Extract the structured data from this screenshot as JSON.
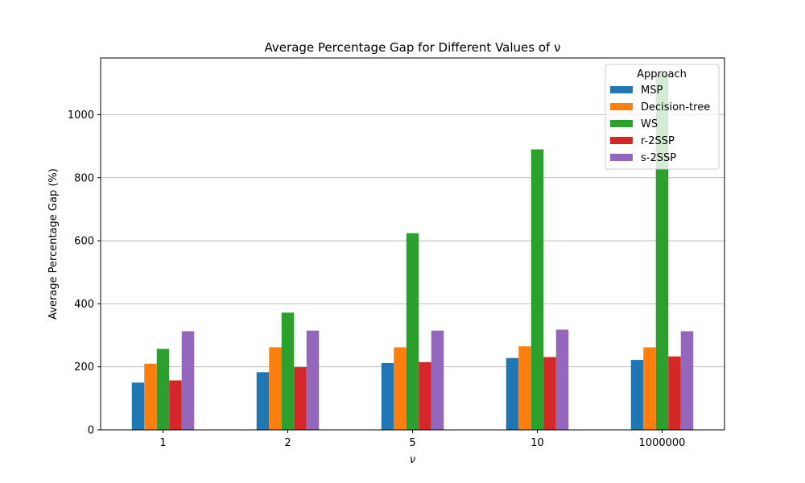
{
  "chart_data": {
    "type": "bar",
    "title": "Average Percentage Gap for Different Values of ν",
    "xlabel": "ν",
    "ylabel": "Average Percentage Gap (%)",
    "categories": [
      "1",
      "2",
      "5",
      "10",
      "1000000"
    ],
    "ylim": [
      0,
      1180
    ],
    "yticks": [
      0,
      200,
      400,
      600,
      800,
      1000
    ],
    "grid": "horizontal",
    "legend": {
      "title": "Approach",
      "placement": "top-right"
    },
    "series": [
      {
        "name": "MSP",
        "color": "#1f77b4",
        "values": [
          150,
          183,
          212,
          228,
          222
        ]
      },
      {
        "name": "Decision-tree",
        "color": "#ff7f0e",
        "values": [
          210,
          262,
          262,
          265,
          262
        ]
      },
      {
        "name": "WS",
        "color": "#2ca02c",
        "values": [
          257,
          372,
          624,
          890,
          1130
        ]
      },
      {
        "name": "r-2SSP",
        "color": "#d62728",
        "values": [
          157,
          199,
          215,
          231,
          233
        ]
      },
      {
        "name": "s-2SSP",
        "color": "#9467bd",
        "values": [
          313,
          315,
          315,
          318,
          313
        ]
      }
    ]
  }
}
